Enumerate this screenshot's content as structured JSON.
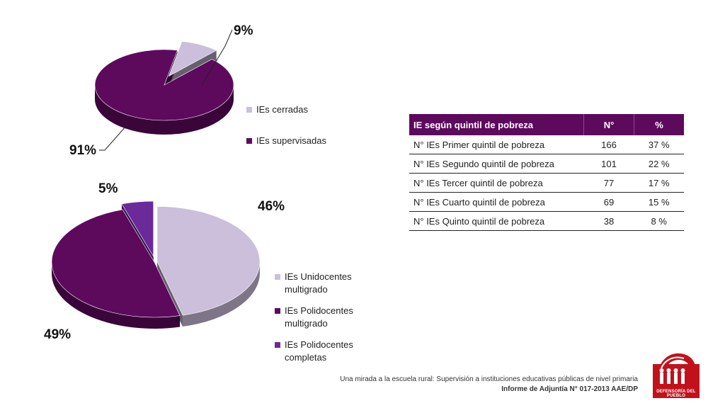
{
  "chart_data": [
    {
      "type": "pie",
      "labels": [
        "IEs cerradas",
        "IEs supervisadas"
      ],
      "values": [
        9,
        91
      ],
      "value_labels": [
        "9%",
        "91%"
      ],
      "colors": [
        "#cbbfdb",
        "#5d0a5d"
      ]
    },
    {
      "type": "pie",
      "labels": [
        "IEs Unidocentes multigrado",
        "IEs Polidocentes multigrado",
        "IEs Polidocentes completas"
      ],
      "values": [
        46,
        49,
        5
      ],
      "value_labels": [
        "46%",
        "49%",
        "5%"
      ],
      "colors": [
        "#cbbfdb",
        "#5d0a5d",
        "#6a2a9a"
      ]
    }
  ],
  "legend1": [
    {
      "label": "IEs cerradas",
      "color": "#cbbfdb"
    },
    {
      "label": "IEs supervisadas",
      "color": "#5d0a5d"
    }
  ],
  "legend2": [
    {
      "line1": "IEs Unidocentes",
      "line2": "multigrado",
      "color": "#cbbfdb"
    },
    {
      "line1": "IEs Polidocentes",
      "line2": "multigrado",
      "color": "#5d0a5d"
    },
    {
      "line1": "IEs Polidocentes",
      "line2": "completas",
      "color": "#6a2a9a"
    }
  ],
  "table": {
    "headers": [
      "IE según quintil de pobreza",
      "N°",
      "%"
    ],
    "rows": [
      [
        "N° IEs Primer quintil de pobreza",
        "166",
        "37 %"
      ],
      [
        "N° IEs Segundo quintil de pobreza",
        "101",
        "22 %"
      ],
      [
        "N° IEs Tercer quintil de pobreza",
        "77",
        "17 %"
      ],
      [
        "N° IEs Cuarto quintil de pobreza",
        "69",
        "15 %"
      ],
      [
        "N° IEs Quinto quintil de pobreza",
        "38",
        "8 %"
      ]
    ]
  },
  "footer": {
    "line1": "Una mirada a la escuela rural: Supervisión a instituciones educativas públicas de nivel primaria",
    "line2": "Informe de Adjuntía N° 017-2013 AAE/DP"
  },
  "logo": {
    "text": "DEFENSORÍA DEL PUEBLO",
    "icon": "defensoria-logo-icon",
    "color": "#c1121c"
  }
}
